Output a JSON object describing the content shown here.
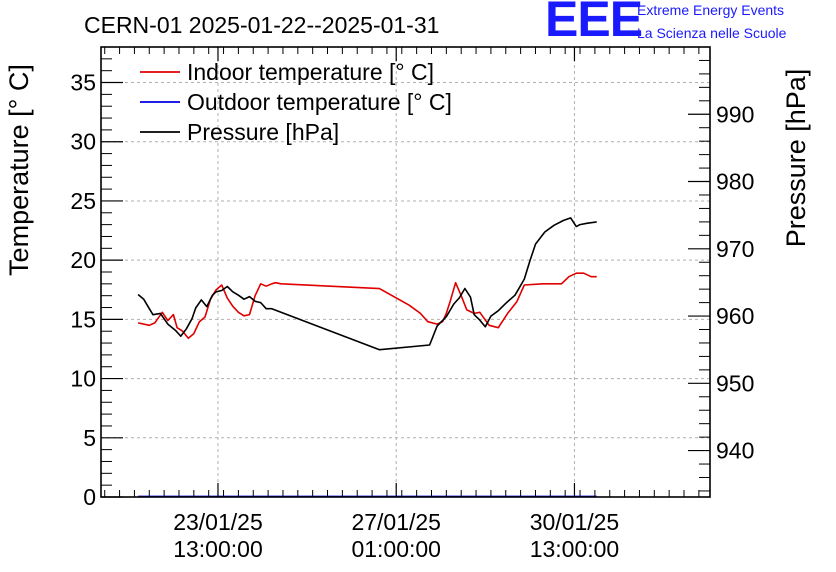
{
  "brand": {
    "logo_text": "EEE",
    "line1": "Extreme Energy Events",
    "line2": "La Scienza nelle Scuole",
    "color": "#1a1aff"
  },
  "chart_data": {
    "type": "line",
    "title": "CERN-01 2025-01-22--2025-01-31",
    "x_ticks": [
      {
        "t": 37,
        "line1": "23/01/25",
        "line2": "13:00:00"
      },
      {
        "t": 133,
        "line1": "27/01/25",
        "line2": "01:00:00"
      },
      {
        "t": 229,
        "line1": "30/01/25",
        "line2": "13:00:00"
      }
    ],
    "xlim": [
      -26,
      302
    ],
    "y_left": {
      "label": "Temperature [° C]",
      "ylim": [
        0,
        38
      ],
      "ticks": [
        0,
        5,
        10,
        15,
        20,
        25,
        30,
        35
      ]
    },
    "y_right": {
      "label": "Pressure [hPa]",
      "ylim": [
        933.1,
        1000
      ],
      "ticks": [
        940,
        950,
        960,
        970,
        980,
        990
      ]
    },
    "grid": true,
    "legend_position": "top-left",
    "series": [
      {
        "name": "Indoor temperature [° C]",
        "axis": "left",
        "color": "#e00000",
        "x": [
          -6,
          0,
          3,
          7,
          10,
          13,
          15,
          18,
          21,
          24,
          27,
          30,
          33,
          36,
          39,
          42,
          45,
          48,
          51,
          54,
          57,
          60,
          63,
          66,
          68,
          71,
          124,
          140,
          146,
          150,
          155,
          158,
          160,
          162,
          165,
          168,
          171,
          175,
          178,
          183,
          188,
          193,
          198,
          202,
          212,
          222,
          226,
          230,
          234,
          238,
          241
        ],
        "values": [
          14.7,
          14.5,
          14.7,
          15.6,
          14.9,
          15.4,
          14.3,
          14.0,
          13.4,
          13.8,
          14.8,
          15.2,
          16.7,
          17.5,
          17.9,
          16.8,
          16.1,
          15.6,
          15.3,
          15.4,
          17.0,
          18.0,
          17.8,
          18.0,
          18.1,
          18.0,
          17.6,
          16.2,
          15.5,
          14.8,
          14.6,
          14.8,
          15.5,
          16.5,
          18.1,
          17.0,
          15.8,
          15.5,
          15.6,
          14.5,
          14.3,
          15.5,
          16.5,
          17.9,
          18.0,
          18.0,
          18.6,
          18.9,
          18.9,
          18.6,
          18.6
        ]
      },
      {
        "name": "Outdoor temperature [° C]",
        "axis": "left",
        "color": "#0000e0",
        "x": [
          -6,
          241
        ],
        "values": [
          0.05,
          0.05
        ]
      },
      {
        "name": "Pressure [hPa]",
        "axis": "right",
        "color": "#000000",
        "x": [
          -6,
          -3,
          0,
          2,
          6,
          10,
          14,
          17,
          20,
          23,
          25,
          28,
          31,
          34,
          36,
          39,
          42,
          45,
          48,
          51,
          54,
          57,
          60,
          63,
          66,
          124,
          151,
          155,
          160,
          164,
          167,
          170,
          173,
          175,
          178,
          181,
          184,
          188,
          192,
          197,
          202,
          205,
          208,
          213,
          218,
          223,
          227,
          230,
          232,
          236,
          241
        ],
        "values": [
          963.2,
          962.5,
          961.1,
          960.2,
          960.4,
          958.8,
          957.9,
          957.0,
          958.1,
          959.6,
          961.2,
          962.4,
          961.4,
          963.1,
          963.6,
          963.8,
          964.4,
          963.6,
          963.1,
          962.5,
          962.9,
          962.2,
          962.0,
          961.1,
          961.1,
          955.0,
          955.7,
          958.5,
          959.9,
          961.8,
          962.7,
          964.1,
          962.8,
          960.2,
          959.4,
          958.4,
          960.0,
          960.8,
          961.9,
          963.1,
          965.5,
          968.2,
          970.7,
          972.5,
          973.5,
          974.2,
          974.6,
          973.3,
          973.6,
          973.8,
          974.0
        ]
      }
    ]
  }
}
